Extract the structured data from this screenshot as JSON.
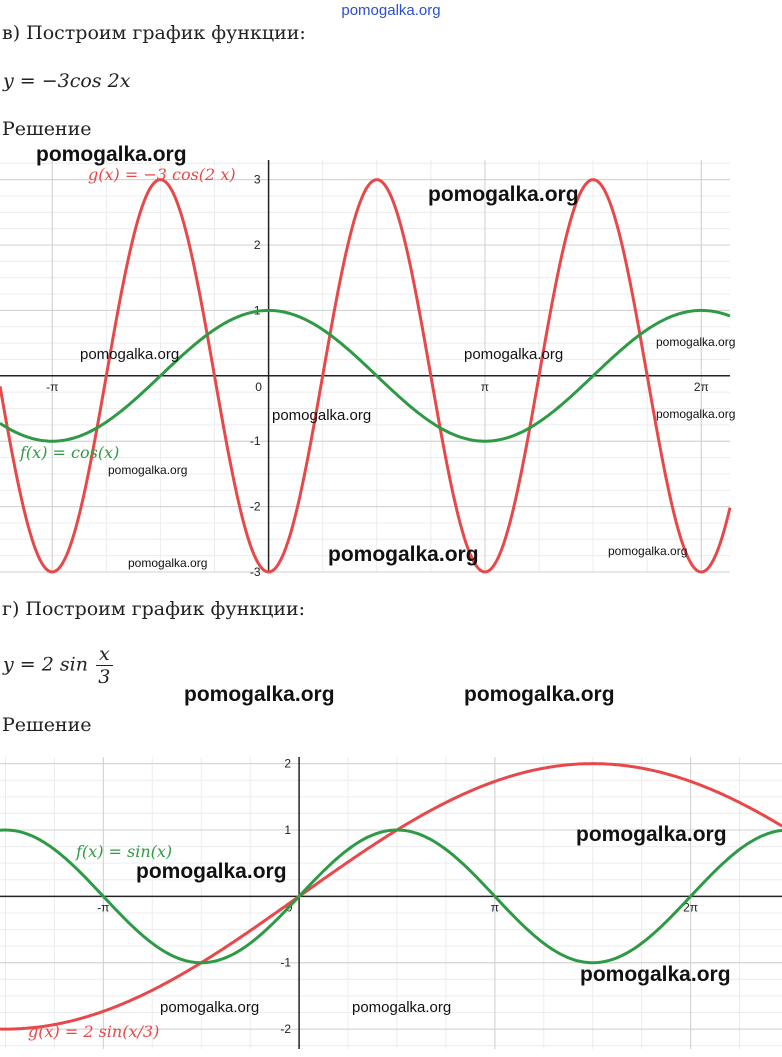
{
  "site": "pomogalka.org",
  "section_v": {
    "heading": "в) Построим график функции:",
    "formula": "y = −3cos 2x",
    "solution_label": "Решение",
    "chart_data": {
      "type": "line",
      "series": [
        {
          "name": "g(x) = −3 cos(2 x)",
          "color": "#e8484a",
          "function": "-3*cos(2x)"
        },
        {
          "name": "f(x) = cos(x)",
          "color": "#2f9a45",
          "function": "cos(x)"
        }
      ],
      "xlim": [
        -3.9,
        6.7
      ],
      "ylim": [
        -3.0,
        3.3
      ],
      "x_ticks": [
        "-π",
        "0",
        "π",
        "2π"
      ],
      "y_ticks": [
        "3",
        "2",
        "1",
        "-1",
        "-2",
        "-3"
      ],
      "grid": true
    }
  },
  "section_g": {
    "heading": "г) Построим график функции:",
    "formula_prefix": "y = 2 sin",
    "formula_num": "x",
    "formula_den": "3",
    "solution_label": "Решение",
    "chart_data": {
      "type": "line",
      "series": [
        {
          "name": "g(x) = 2 sin(x/3)",
          "color": "#e8484a",
          "function": "2*sin(x/3)"
        },
        {
          "name": "f(x) = sin(x)",
          "color": "#2f9a45",
          "function": "sin(x)"
        }
      ],
      "xlim": [
        -4.8,
        7.75
      ],
      "ylim": [
        -2.3,
        2.1
      ],
      "x_ticks": [
        "-π",
        "0",
        "π",
        "2π"
      ],
      "y_ticks": [
        "2",
        "1",
        "-1",
        "-2"
      ],
      "grid": true
    }
  },
  "labels1": {
    "g": "g(x)  =  −3  cos(2 x)",
    "f": "f(x)  =  cos(x)"
  },
  "labels2": {
    "g": "g(x) = 2 sin(x/3)",
    "f": "f(x)  =  sin(x)"
  },
  "watermark": "pomogalka.org"
}
